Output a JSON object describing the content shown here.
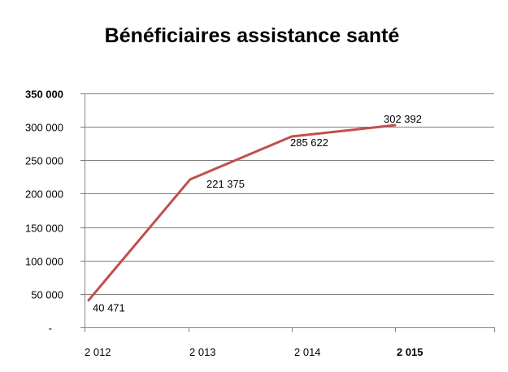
{
  "chart_data": {
    "type": "line",
    "title": "Bénéficiaires assistance santé",
    "xlabel": "",
    "ylabel": "",
    "categories": [
      "2 012",
      "2 013",
      "2 014",
      "2 015"
    ],
    "series": [
      {
        "values": [
          40471,
          221375,
          285622,
          302392
        ],
        "data_labels": [
          "40 471",
          "221 375",
          "285 622",
          "302 392"
        ],
        "color": "#c0504d"
      }
    ],
    "ylim": [
      0,
      350000
    ],
    "yticks": [
      0,
      50000,
      100000,
      150000,
      200000,
      250000,
      300000,
      350000
    ],
    "ytick_labels": [
      "-",
      "50 000",
      "100 000",
      "150 000",
      "200 000",
      "250 000",
      "300 000",
      "350 000"
    ],
    "grid": true,
    "legend": "none"
  }
}
